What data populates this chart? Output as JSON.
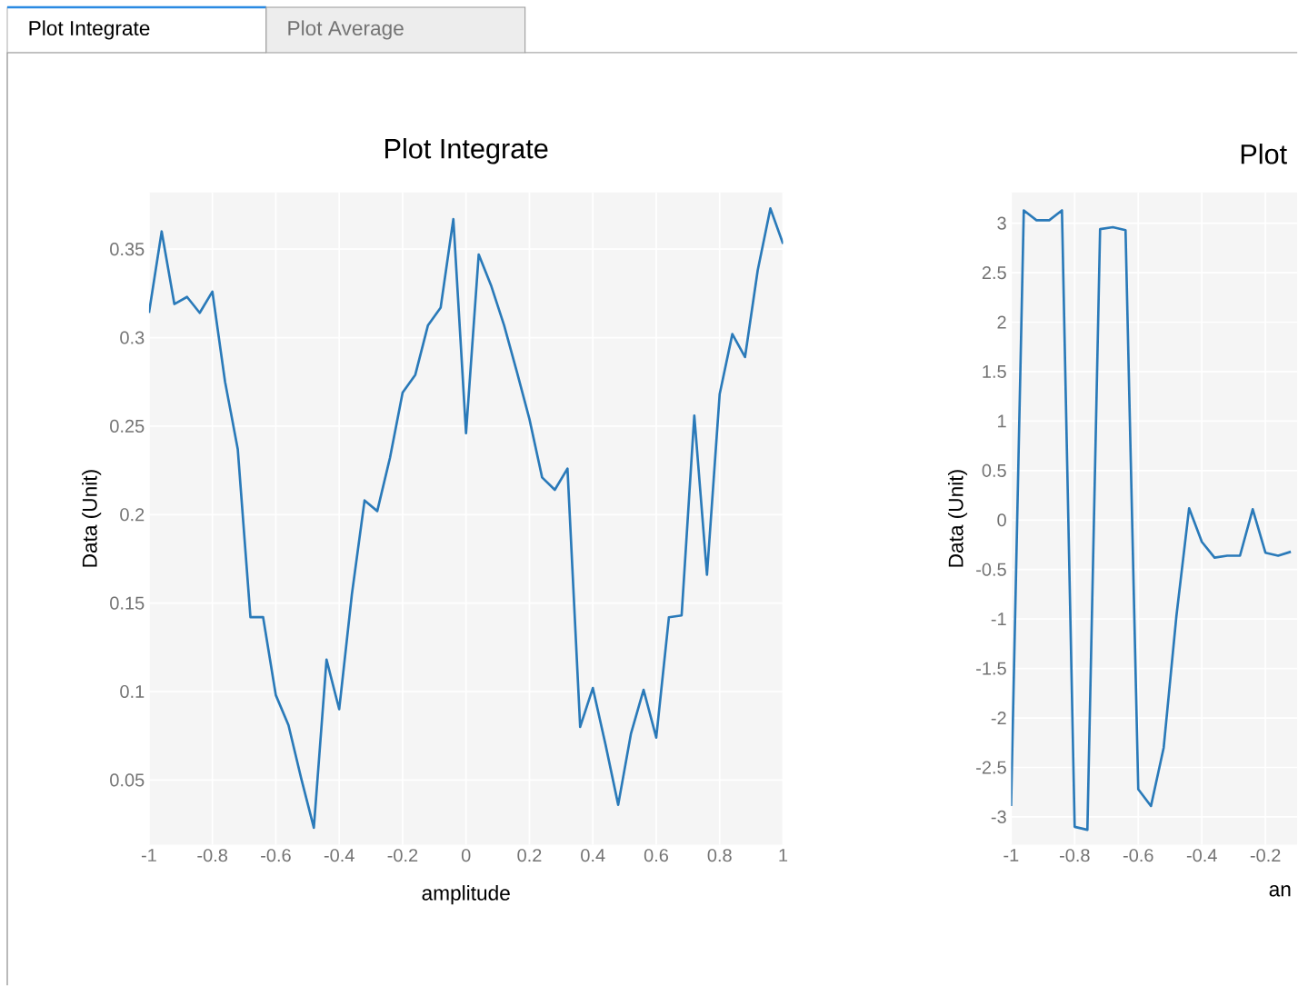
{
  "chart_data": [
    {
      "type": "line",
      "title": "Plot Integrate",
      "xlabel": "amplitude",
      "ylabel": "Data (Unit)",
      "annotations": [
        "Plot Integrate",
        "Plot Average"
      ],
      "x": [
        -1,
        -0.96,
        -0.92,
        -0.88,
        -0.84,
        -0.8,
        -0.76,
        -0.72,
        -0.68,
        -0.64,
        -0.6,
        -0.56,
        -0.52,
        -0.48,
        -0.44,
        -0.4,
        -0.36,
        -0.32,
        -0.28,
        -0.24,
        -0.2,
        -0.16,
        -0.12,
        -0.08,
        -0.04,
        0,
        0.04,
        0.08,
        0.12,
        0.16,
        0.2,
        0.24,
        0.28,
        0.32,
        0.36,
        0.4,
        0.44,
        0.48,
        0.52,
        0.56,
        0.6,
        0.64,
        0.68,
        0.72,
        0.76,
        0.8,
        0.84,
        0.88,
        0.92,
        0.96,
        1
      ],
      "values": [
        0.314,
        0.36,
        0.319,
        0.323,
        0.314,
        0.326,
        0.275,
        0.237,
        0.142,
        0.142,
        0.098,
        0.081,
        0.051,
        0.023,
        0.118,
        0.09,
        0.155,
        0.208,
        0.202,
        0.232,
        0.269,
        0.279,
        0.307,
        0.317,
        0.367,
        0.246,
        0.347,
        0.329,
        0.307,
        0.281,
        0.254,
        0.221,
        0.214,
        0.226,
        0.08,
        0.102,
        0.07,
        0.036,
        0.076,
        0.101,
        0.074,
        0.142,
        0.143,
        0.256,
        0.166,
        0.268,
        0.302,
        0.289,
        0.338,
        0.373,
        0.353
      ],
      "color": "#2a7ab9",
      "xlim": [
        -1,
        1
      ],
      "ylim": [
        0.0135,
        0.382
      ],
      "xticks": [
        -1,
        -0.8,
        -0.6,
        -0.4,
        -0.2,
        0,
        0.2,
        0.4,
        0.6,
        0.8,
        1
      ],
      "yticks": [
        0.05,
        0.1,
        0.15,
        0.2,
        0.25,
        0.3,
        0.35
      ],
      "grid": true,
      "marker": "none",
      "line_style": "solid"
    },
    {
      "type": "line",
      "title": "Plot",
      "xlabel": "an",
      "ylabel": "Data (Unit)",
      "x": [
        -1,
        -0.96,
        -0.92,
        -0.88,
        -0.84,
        -0.8,
        -0.76,
        -0.72,
        -0.68,
        -0.64,
        -0.6,
        -0.56,
        -0.52,
        -0.48,
        -0.44,
        -0.4,
        -0.36,
        -0.32,
        -0.28,
        -0.24,
        -0.2,
        -0.16,
        -0.12
      ],
      "values": [
        -2.89,
        3.13,
        3.03,
        3.03,
        3.13,
        -3.1,
        -3.13,
        2.94,
        2.96,
        2.93,
        -2.72,
        -2.89,
        -2.3,
        -0.97,
        0.12,
        -0.22,
        -0.38,
        -0.36,
        -0.36,
        0.11,
        -0.33,
        -0.36,
        -0.32
      ],
      "color": "#2a7ab9",
      "xlim": [
        -1,
        -0.1
      ],
      "ylim": [
        -3.28,
        3.31
      ],
      "xticks": [
        -1,
        -0.8,
        -0.6,
        -0.4,
        -0.2
      ],
      "yticks": [
        -3,
        -2.5,
        -2,
        -1.5,
        -1,
        -0.5,
        0,
        0.5,
        1,
        1.5,
        2,
        2.5,
        3
      ],
      "grid": true,
      "marker": "none",
      "line_style": "solid"
    }
  ]
}
